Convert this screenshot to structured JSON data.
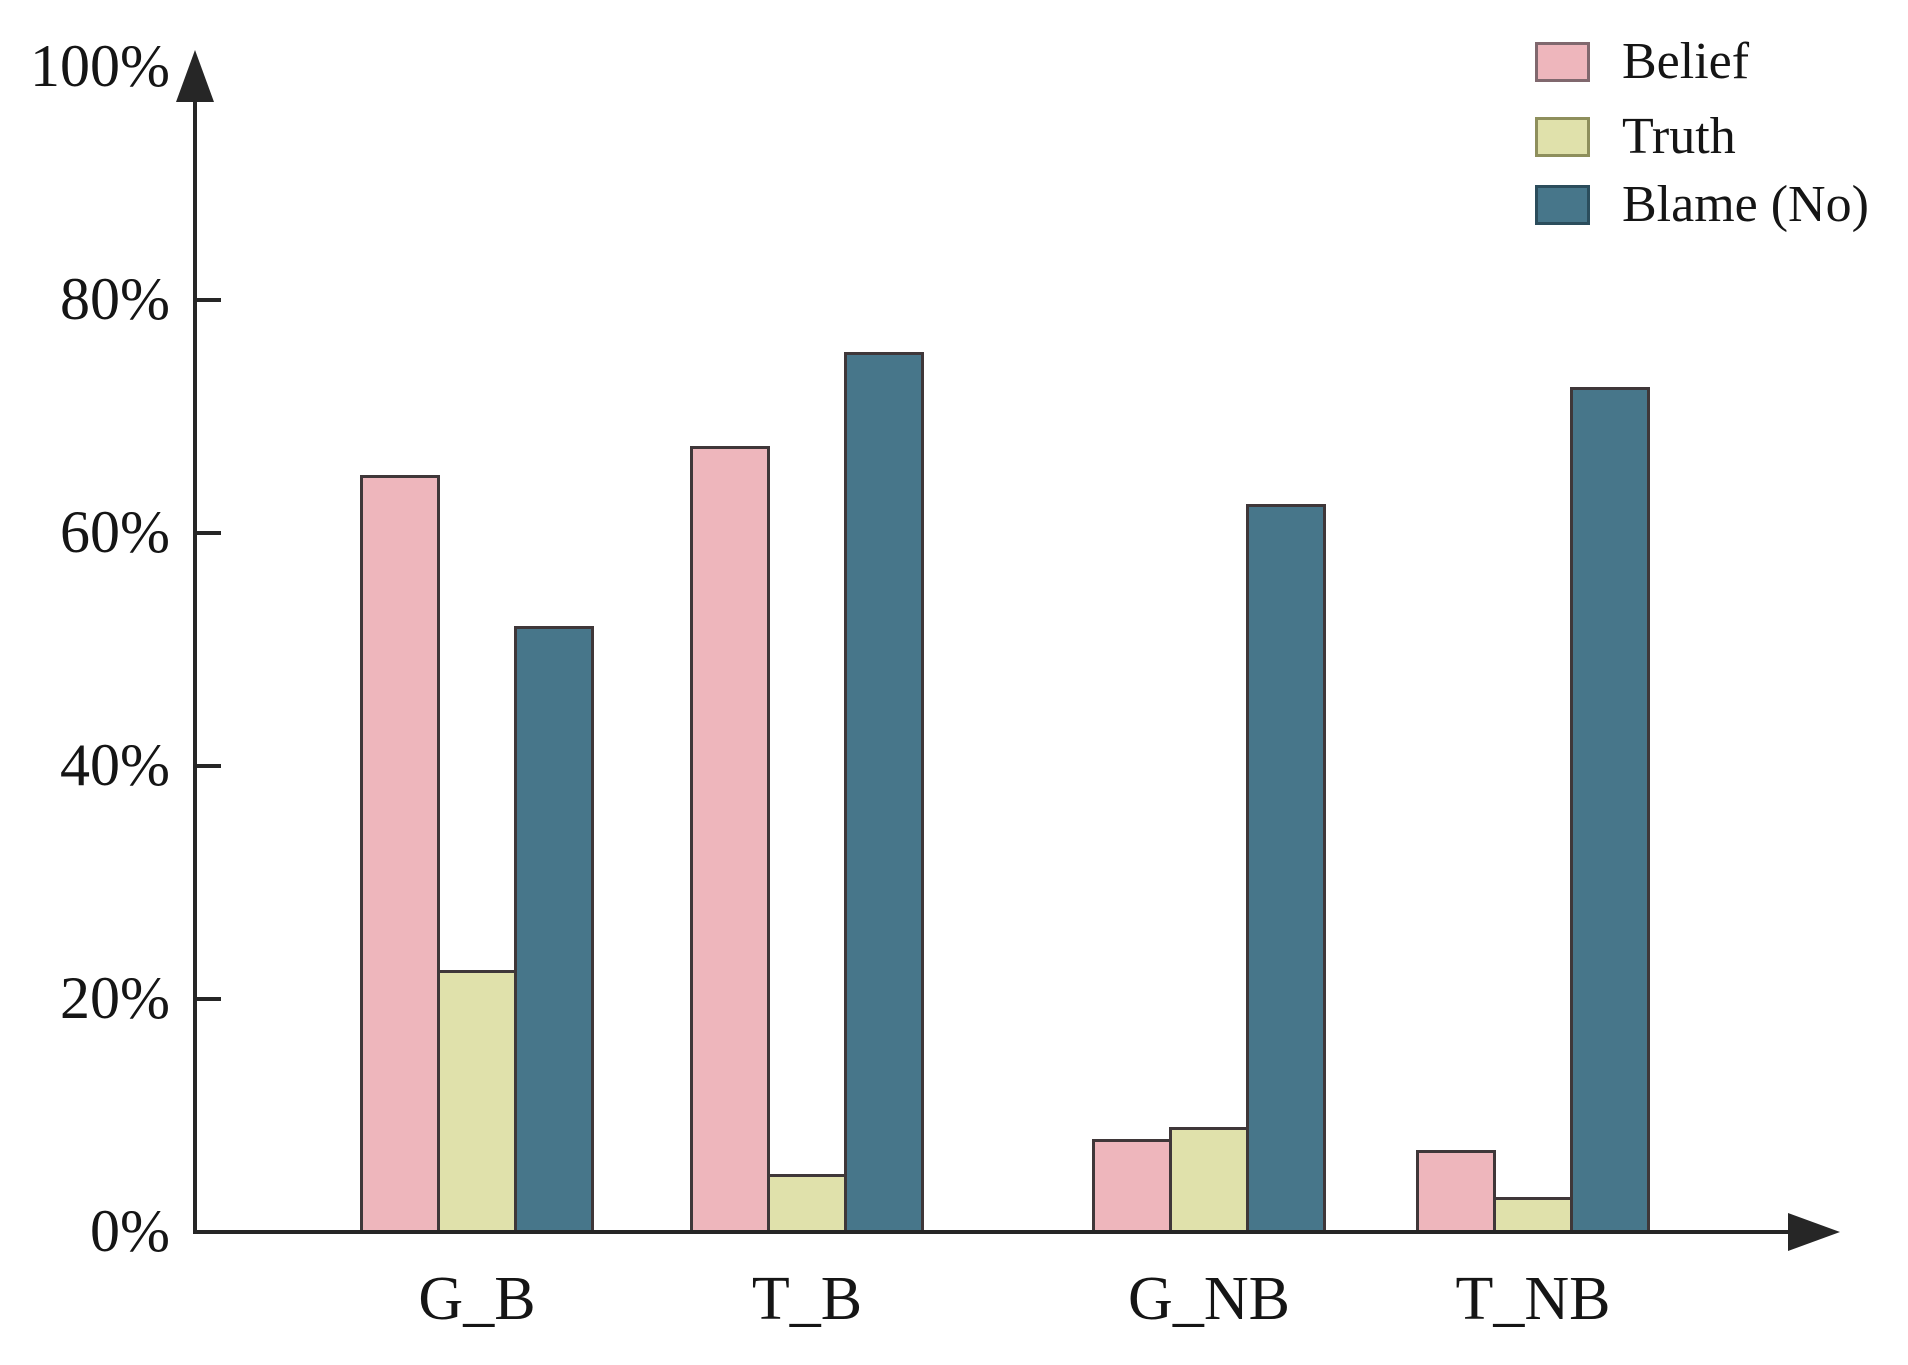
{
  "chart_data": {
    "type": "bar",
    "title": "",
    "categories": [
      "G_B",
      "T_B",
      "G_NB",
      "T_NB"
    ],
    "series": [
      {
        "name": "Belief",
        "fill": "#EEB6BC",
        "swatch_border": "#80686E",
        "values": [
          65,
          67.5,
          8,
          7
        ]
      },
      {
        "name": "Truth",
        "fill": "#E0E1AB",
        "swatch_border": "#8E8F5C",
        "values": [
          22.5,
          5,
          9,
          3
        ]
      },
      {
        "name": "Blame (No)",
        "fill": "#47768A",
        "swatch_border": "#2B4D5C",
        "values": [
          52,
          75.5,
          62.5,
          72.5
        ]
      }
    ],
    "y_ticks": [
      {
        "label": "0%",
        "value": 0
      },
      {
        "label": "20%",
        "value": 20
      },
      {
        "label": "40%",
        "value": 40
      },
      {
        "label": "60%",
        "value": 60
      },
      {
        "label": "80%",
        "value": 80
      },
      {
        "label": "100%",
        "value": 100
      }
    ],
    "ylim": [
      0,
      100
    ],
    "unit": "%",
    "grid": false,
    "legend_position": "top-right",
    "colors": {
      "bar_border": "#3F3739",
      "axis": "#262626",
      "text": "#151515",
      "background": "#FFFFFF"
    }
  }
}
